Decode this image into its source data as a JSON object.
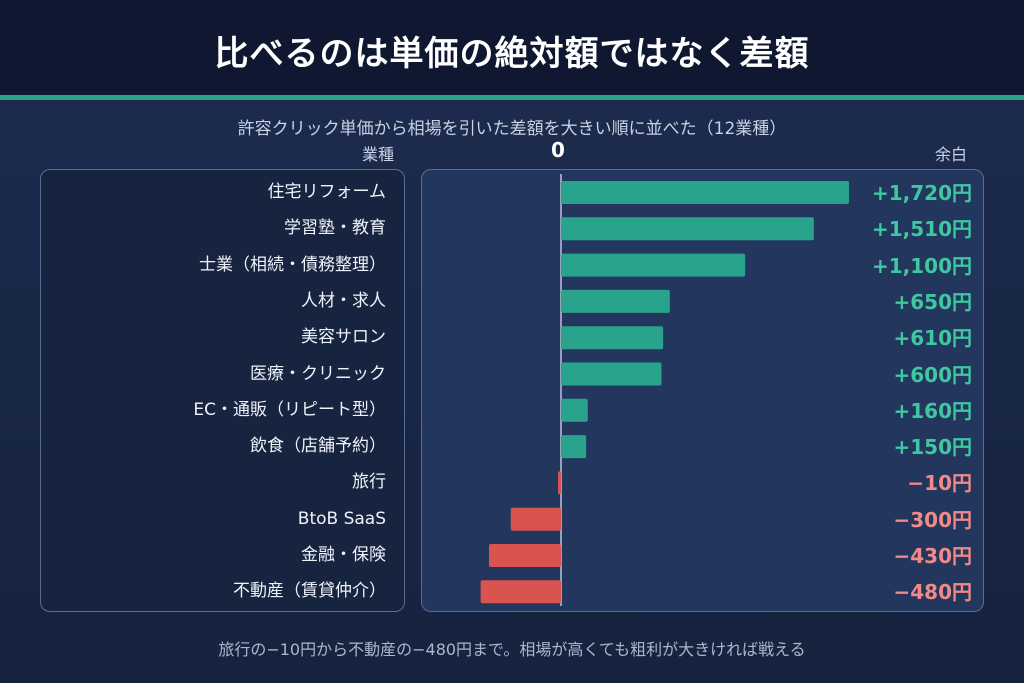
{
  "title": "比べるのは単価の絶対額ではなく差額",
  "subtitle": "許容クリック単価から相場を引いた差額を大きい順に並べた（12業種）",
  "header_left": "業種",
  "header_zero": "0",
  "header_right": "余白",
  "footer": "旅行の−10円から不動産の−480円まで。相場が高くても粗利が大きければ戦える",
  "colors": {
    "positive": "#2aa38c",
    "negative": "#d9534f",
    "positive_text": "#3ec7a1",
    "negative_text": "#f08a86",
    "accent": "#2aa38c"
  },
  "chart_data": {
    "type": "bar",
    "orientation": "horizontal",
    "categories": [
      "住宅リフォーム",
      "学習塾・教育",
      "士業（相続・債務整理）",
      "人材・求人",
      "美容サロン",
      "医療・クリニック",
      "EC・通販（リピート型）",
      "飲食（店舗予約）",
      "旅行",
      "BtoB SaaS",
      "金融・保険",
      "不動産（賃貸仲介）"
    ],
    "values": [
      1720,
      1510,
      1100,
      650,
      610,
      600,
      160,
      150,
      -10,
      -300,
      -430,
      -480
    ],
    "value_labels": [
      "+1,720円",
      "+1,510円",
      "+1,100円",
      "+650円",
      "+610円",
      "+600円",
      "+160円",
      "+150円",
      "−10円",
      "−300円",
      "−430円",
      "−480円"
    ],
    "xlim": [
      -480,
      1720
    ]
  }
}
